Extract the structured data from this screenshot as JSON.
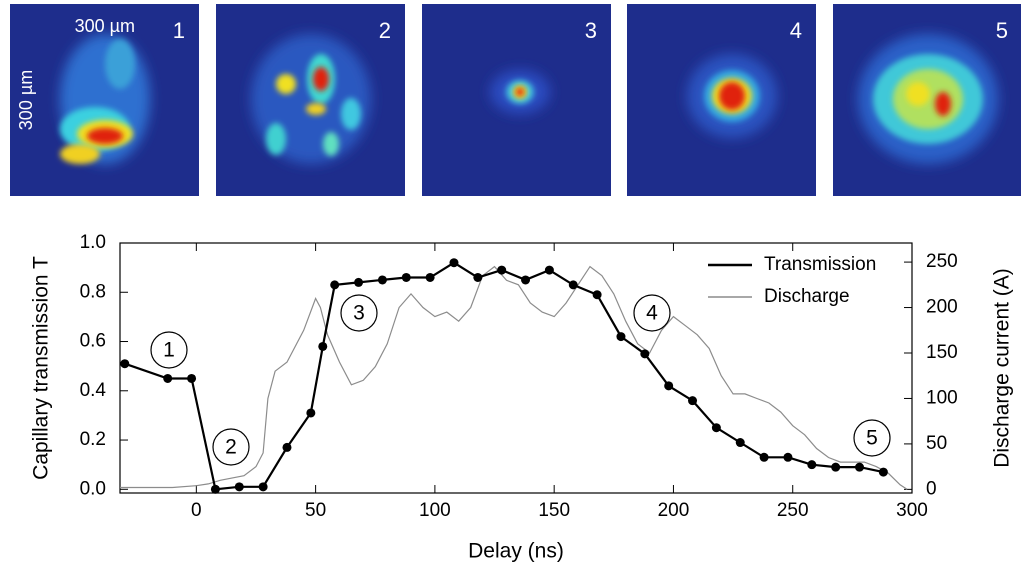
{
  "images": {
    "labels": [
      "1",
      "2",
      "3",
      "4",
      "5"
    ],
    "scale_x": "300 µm",
    "scale_y": "300 µm"
  },
  "chart_data": {
    "type": "line",
    "x_label": "Delay (ns)",
    "y_label": "Capillary transmission T",
    "y2_label": "Discharge current (A)",
    "xlim": [
      -32,
      300
    ],
    "xticks": [
      0,
      50,
      100,
      150,
      200,
      250,
      300
    ],
    "ylim": [
      -0.015,
      1.0
    ],
    "yticks": [
      {
        "value": 0,
        "label": "0.0"
      },
      {
        "value": 0.2,
        "label": "0.2"
      },
      {
        "value": 0.4,
        "label": "0.4"
      },
      {
        "value": 0.6,
        "label": "0.6"
      },
      {
        "value": 0.8,
        "label": "0.8"
      },
      {
        "value": 1,
        "label": "1.0"
      }
    ],
    "y2lim": [
      -4,
      271
    ],
    "y2ticks": [
      0,
      50,
      100,
      150,
      200,
      250
    ],
    "legend": "upper right",
    "annotations": [
      "1",
      "2",
      "3",
      "4",
      "5"
    ],
    "series": [
      {
        "name": "Transmission",
        "color": "#000000",
        "markers": true,
        "x": [
          -30,
          -12,
          -2,
          8,
          18,
          28,
          38,
          48,
          53,
          58,
          68,
          78,
          88,
          98,
          108,
          118,
          128,
          138,
          148,
          158,
          168,
          178,
          188,
          198,
          208,
          218,
          228,
          238,
          248,
          258,
          268,
          278,
          288
        ],
        "values": [
          0.51,
          0.45,
          0.45,
          0.0,
          0.01,
          0.01,
          0.17,
          0.31,
          0.58,
          0.83,
          0.84,
          0.85,
          0.86,
          0.86,
          0.92,
          0.86,
          0.89,
          0.85,
          0.89,
          0.83,
          0.79,
          0.62,
          0.55,
          0.42,
          0.36,
          0.25,
          0.19,
          0.13,
          0.13,
          0.1,
          0.09,
          0.09,
          0.07
        ]
      },
      {
        "name": "Discharge",
        "color": "#8c8c8c",
        "axis": "y2",
        "markers": false,
        "x": [
          -32,
          -10,
          0,
          5,
          10,
          20,
          25,
          28,
          30,
          33,
          38,
          45,
          50,
          52,
          55,
          60,
          65,
          70,
          75,
          80,
          85,
          90,
          95,
          100,
          105,
          110,
          115,
          120,
          125,
          130,
          135,
          140,
          145,
          150,
          155,
          160,
          165,
          170,
          175,
          180,
          185,
          190,
          195,
          200,
          205,
          210,
          215,
          220,
          225,
          230,
          235,
          240,
          245,
          250,
          255,
          260,
          265,
          270,
          280,
          285,
          290,
          295,
          298
        ],
        "values": [
          2,
          2,
          4,
          6,
          10,
          15,
          25,
          40,
          100,
          130,
          140,
          175,
          210,
          200,
          170,
          140,
          115,
          120,
          135,
          160,
          200,
          215,
          200,
          190,
          195,
          185,
          200,
          235,
          245,
          230,
          225,
          205,
          195,
          190,
          205,
          225,
          245,
          235,
          215,
          185,
          160,
          150,
          175,
          190,
          180,
          170,
          155,
          125,
          105,
          105,
          100,
          95,
          85,
          70,
          60,
          45,
          35,
          30,
          30,
          25,
          18,
          5,
          0
        ]
      }
    ]
  }
}
